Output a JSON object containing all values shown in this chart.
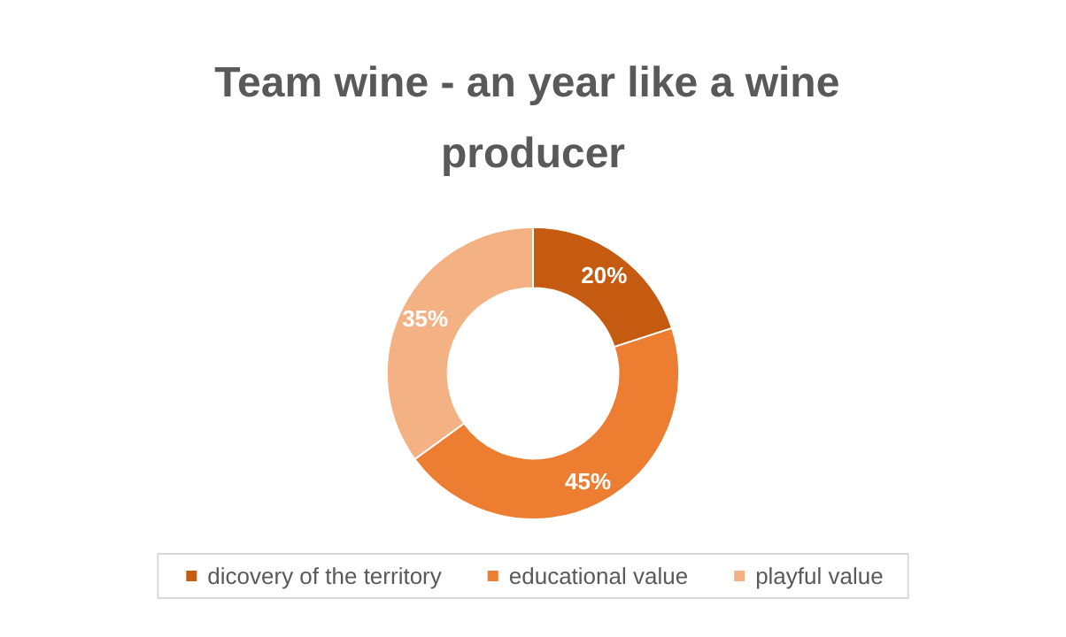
{
  "chart_data": {
    "type": "donut",
    "title": "Team wine - an year like a wine producer",
    "categories": [
      "dicovery of the territory",
      "educational value",
      "playful value"
    ],
    "values": [
      20,
      45,
      35
    ],
    "colors": [
      "#c55a11",
      "#ed7d31",
      "#f4b183"
    ],
    "value_labels": [
      "20%",
      "45%",
      "35%"
    ],
    "legend": "bottom"
  }
}
